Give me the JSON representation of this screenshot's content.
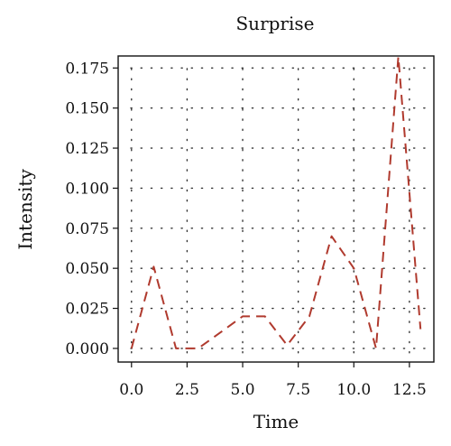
{
  "chart_data": {
    "type": "line",
    "title": "Surprise",
    "xlabel": "Time",
    "ylabel": "Intensity",
    "xlim": [
      -0.6,
      13.6
    ],
    "ylim": [
      -0.0085,
      0.1825
    ],
    "grid": true,
    "x_ticks": [
      0,
      2.5,
      5,
      7.5,
      10,
      12.5
    ],
    "x_tick_labels": [
      "0.0",
      "2.5",
      "5.0",
      "7.5",
      "10.0",
      "12.5"
    ],
    "y_ticks": [
      0,
      0.025,
      0.05,
      0.075,
      0.1,
      0.125,
      0.15,
      0.175
    ],
    "y_tick_labels": [
      "0.000",
      "0.025",
      "0.050",
      "0.075",
      "0.100",
      "0.125",
      "0.150",
      "0.175"
    ],
    "series": [
      {
        "color": "#b03a2e",
        "x": [
          0,
          1,
          2,
          3,
          4,
          5,
          6,
          7,
          8,
          9,
          10,
          11,
          12,
          13
        ],
        "y": [
          0.0,
          0.051,
          0.0,
          0.0,
          0.01,
          0.02,
          0.02,
          0.002,
          0.02,
          0.07,
          0.05,
          0.0,
          0.182,
          0.012
        ]
      }
    ]
  }
}
